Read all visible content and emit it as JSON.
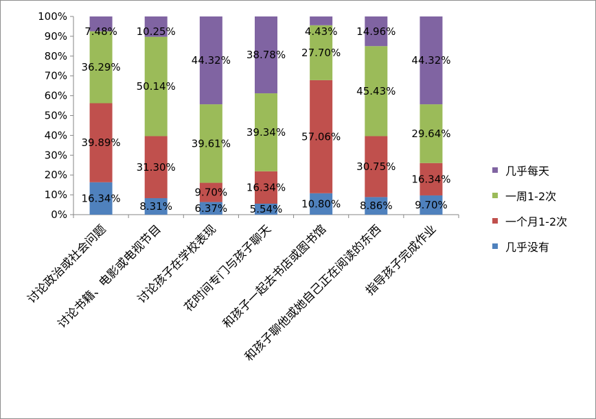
{
  "chart_data": {
    "type": "bar",
    "stacked": true,
    "percent": true,
    "title": "",
    "xlabel": "",
    "ylabel": "",
    "ylim": [
      0,
      100
    ],
    "yticks": [
      "0%",
      "10%",
      "20%",
      "30%",
      "40%",
      "50%",
      "60%",
      "70%",
      "80%",
      "90%",
      "100%"
    ],
    "categories": [
      "讨论政治或社会问题",
      "讨论书籍、电影或电视节目",
      "讨论孩子在学校表现",
      "花时间专门与孩子聊天",
      "和孩子一起去书店或图书馆",
      "和孩子聊他或她自己正在阅读的东西",
      "指导孩子完成作业"
    ],
    "legend_position": "right",
    "series": [
      {
        "name": "几乎没有",
        "color": "#4f81bd",
        "values": [
          16.34,
          8.31,
          6.37,
          5.54,
          10.8,
          8.86,
          9.7
        ],
        "labels": [
          "16.34%",
          "8.31%",
          "6.37%",
          "5.54%",
          "10.80%",
          "8.86%",
          "9.70%"
        ]
      },
      {
        "name": "一个月1-2次",
        "color": "#c0504d",
        "values": [
          39.89,
          31.3,
          9.7,
          16.34,
          57.06,
          30.75,
          16.34
        ],
        "labels": [
          "39.89%",
          "31.30%",
          "9.70%",
          "16.34%",
          "57.06%",
          "30.75%",
          "16.34%"
        ]
      },
      {
        "name": "一周1-2次",
        "color": "#9bbb59",
        "values": [
          36.29,
          50.14,
          39.61,
          39.34,
          27.7,
          45.43,
          29.64
        ],
        "labels": [
          "36.29%",
          "50.14%",
          "39.61%",
          "39.34%",
          "27.70%",
          "45.43%",
          "29.64%"
        ]
      },
      {
        "name": "几乎每天",
        "color": "#8064a2",
        "values": [
          7.48,
          10.25,
          44.32,
          38.78,
          4.43,
          14.96,
          44.32
        ],
        "labels": [
          "7.48%",
          "10.25%",
          "44.32%",
          "38.78%",
          "4.43%",
          "14.96%",
          "44.32%"
        ]
      }
    ],
    "legend_order": [
      3,
      2,
      1,
      0
    ]
  }
}
